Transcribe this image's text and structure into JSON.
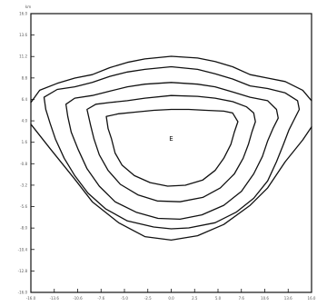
{
  "chart_data": {
    "type": "contour",
    "title": "",
    "xlabel": "",
    "ylabel": "",
    "xlim": [
      -16.0,
      16.0
    ],
    "ylim": [
      -16.0,
      16.0
    ],
    "grid": false,
    "legend": "none",
    "corner_label": "km",
    "x_ticks": [
      "-16.0",
      "-13.6",
      "-10.6",
      "-7.6",
      "-5.0",
      "-2.5",
      "0.0",
      "2.5",
      "5.0",
      "7.6",
      "10.6",
      "13.6",
      "16.0"
    ],
    "y_ticks": [
      "16.0",
      "13.6",
      "11.2",
      "8.8",
      "6.4",
      "4.0",
      "1.6",
      "-0.8",
      "-3.2",
      "-5.6",
      "-8.0",
      "-10.4",
      "-12.8",
      "-16.0"
    ],
    "center_marker": {
      "label": "E",
      "x": 0.0,
      "y": 1.4
    },
    "contours": [
      {
        "level": 1,
        "points": [
          [
            -16.0,
            5.8
          ],
          [
            -15.0,
            7.2
          ],
          [
            -13.0,
            8.0
          ],
          [
            -11.0,
            8.6
          ],
          [
            -9.0,
            9.0
          ],
          [
            -7.0,
            9.8
          ],
          [
            -5.0,
            10.4
          ],
          [
            -3.0,
            10.8
          ],
          [
            0.0,
            11.1
          ],
          [
            3.0,
            10.9
          ],
          [
            5.0,
            10.5
          ],
          [
            7.0,
            9.9
          ],
          [
            9.0,
            9.0
          ],
          [
            11.0,
            8.6
          ],
          [
            13.0,
            8.2
          ],
          [
            15.0,
            7.2
          ],
          [
            16.0,
            6.0
          ]
        ],
        "closed": false,
        "tail_left": [
          [
            -16.0,
            3.3
          ],
          [
            -13.8,
            0.5
          ],
          [
            -11.0,
            -3.0
          ],
          [
            -9.0,
            -5.6
          ],
          [
            -6.0,
            -8.0
          ],
          [
            -3.0,
            -9.6
          ],
          [
            0.0,
            -10.0
          ],
          [
            3.0,
            -9.5
          ],
          [
            6.0,
            -8.2
          ],
          [
            9.0,
            -6.0
          ],
          [
            11.0,
            -4.0
          ],
          [
            13.0,
            -1.0
          ],
          [
            15.0,
            1.5
          ],
          [
            16.0,
            3.0
          ]
        ]
      },
      {
        "level": 2,
        "points": [
          [
            -14.5,
            6.4
          ],
          [
            -13.0,
            7.3
          ],
          [
            -11.0,
            7.6
          ],
          [
            -9.0,
            8.1
          ],
          [
            -7.0,
            8.8
          ],
          [
            -5.0,
            9.3
          ],
          [
            -3.0,
            9.6
          ],
          [
            0.0,
            9.9
          ],
          [
            3.0,
            9.6
          ],
          [
            5.0,
            9.1
          ],
          [
            7.0,
            8.5
          ],
          [
            9.0,
            7.7
          ],
          [
            11.0,
            7.4
          ],
          [
            13.0,
            6.9
          ],
          [
            14.4,
            6.0
          ],
          [
            14.6,
            5.0
          ],
          [
            14.0,
            3.8
          ],
          [
            13.4,
            2.6
          ],
          [
            12.8,
            1.0
          ],
          [
            12.0,
            -1.0
          ],
          [
            11.0,
            -3.2
          ],
          [
            9.4,
            -5.2
          ],
          [
            7.4,
            -6.8
          ],
          [
            5.0,
            -8.0
          ],
          [
            2.0,
            -8.6
          ],
          [
            0.0,
            -8.7
          ],
          [
            -2.0,
            -8.5
          ],
          [
            -5.0,
            -7.8
          ],
          [
            -7.5,
            -6.4
          ],
          [
            -9.5,
            -4.6
          ],
          [
            -11.0,
            -2.6
          ],
          [
            -12.2,
            -0.6
          ],
          [
            -13.2,
            1.6
          ],
          [
            -13.8,
            3.4
          ],
          [
            -14.3,
            5.0
          ],
          [
            -14.5,
            6.4
          ]
        ],
        "closed": true
      },
      {
        "level": 3,
        "points": [
          [
            -12.0,
            5.6
          ],
          [
            -11.0,
            6.3
          ],
          [
            -9.0,
            6.6
          ],
          [
            -7.0,
            7.1
          ],
          [
            -5.0,
            7.6
          ],
          [
            -3.0,
            7.9
          ],
          [
            0.0,
            8.1
          ],
          [
            3.0,
            7.9
          ],
          [
            5.0,
            7.6
          ],
          [
            7.0,
            7.0
          ],
          [
            9.0,
            6.4
          ],
          [
            11.0,
            6.0
          ],
          [
            12.0,
            5.0
          ],
          [
            12.2,
            4.0
          ],
          [
            11.6,
            2.8
          ],
          [
            11.0,
            1.4
          ],
          [
            10.4,
            -0.4
          ],
          [
            9.4,
            -2.4
          ],
          [
            8.0,
            -4.4
          ],
          [
            6.0,
            -6.0
          ],
          [
            3.5,
            -7.1
          ],
          [
            1.0,
            -7.6
          ],
          [
            -1.5,
            -7.5
          ],
          [
            -4.0,
            -6.8
          ],
          [
            -6.4,
            -5.6
          ],
          [
            -8.2,
            -3.8
          ],
          [
            -9.6,
            -1.8
          ],
          [
            -10.6,
            0.4
          ],
          [
            -11.4,
            2.4
          ],
          [
            -11.8,
            4.2
          ],
          [
            -12.0,
            5.6
          ]
        ],
        "closed": true
      },
      {
        "level": 4,
        "points": [
          [
            -9.6,
            5.0
          ],
          [
            -8.6,
            5.6
          ],
          [
            -7.0,
            5.8
          ],
          [
            -5.0,
            6.0
          ],
          [
            -3.0,
            6.3
          ],
          [
            0.0,
            6.6
          ],
          [
            3.0,
            6.5
          ],
          [
            5.0,
            6.3
          ],
          [
            7.0,
            5.9
          ],
          [
            8.6,
            5.3
          ],
          [
            9.4,
            4.6
          ],
          [
            9.6,
            3.6
          ],
          [
            9.2,
            2.4
          ],
          [
            8.8,
            1.0
          ],
          [
            8.2,
            -0.6
          ],
          [
            7.2,
            -2.4
          ],
          [
            5.6,
            -4.0
          ],
          [
            3.6,
            -5.1
          ],
          [
            1.0,
            -5.6
          ],
          [
            -1.6,
            -5.5
          ],
          [
            -3.8,
            -4.8
          ],
          [
            -5.8,
            -3.6
          ],
          [
            -7.2,
            -2.0
          ],
          [
            -8.2,
            -0.2
          ],
          [
            -8.8,
            1.6
          ],
          [
            -9.2,
            3.2
          ],
          [
            -9.6,
            5.0
          ]
        ],
        "closed": true
      },
      {
        "level": 5,
        "points": [
          [
            -7.4,
            4.2
          ],
          [
            -6.0,
            4.5
          ],
          [
            -4.0,
            4.7
          ],
          [
            -2.0,
            4.9
          ],
          [
            0.0,
            5.0
          ],
          [
            2.0,
            5.0
          ],
          [
            4.0,
            4.9
          ],
          [
            6.0,
            4.8
          ],
          [
            7.0,
            4.6
          ],
          [
            7.6,
            3.6
          ],
          [
            7.2,
            2.4
          ],
          [
            6.8,
            1.0
          ],
          [
            6.0,
            -0.6
          ],
          [
            5.0,
            -2.0
          ],
          [
            3.6,
            -3.1
          ],
          [
            1.6,
            -3.7
          ],
          [
            -0.4,
            -3.8
          ],
          [
            -2.4,
            -3.4
          ],
          [
            -4.2,
            -2.6
          ],
          [
            -5.6,
            -1.4
          ],
          [
            -6.4,
            0.0
          ],
          [
            -6.8,
            1.6
          ],
          [
            -7.2,
            2.8
          ],
          [
            -7.4,
            4.2
          ]
        ],
        "closed": true
      }
    ]
  }
}
